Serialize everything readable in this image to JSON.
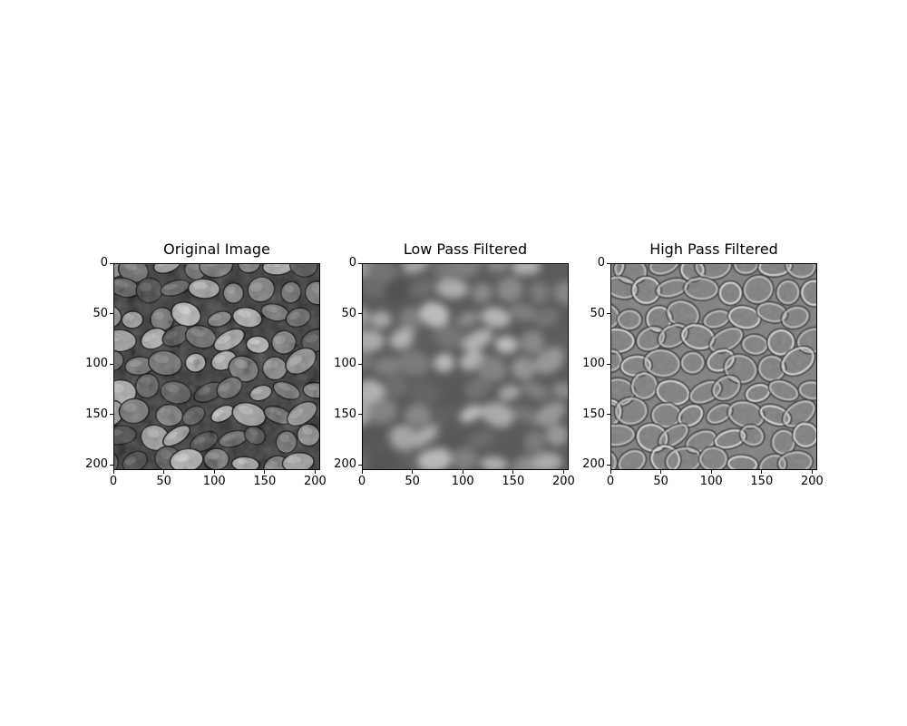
{
  "figure": {
    "panels": [
      {
        "title": "Original Image",
        "kind": "original"
      },
      {
        "title": "Low Pass Filtered",
        "kind": "lowpass"
      },
      {
        "title": "High Pass Filtered",
        "kind": "highpass"
      }
    ],
    "axis": {
      "xticks": [
        "0",
        "50",
        "100",
        "150",
        "200"
      ],
      "yticks": [
        "0",
        "50",
        "100",
        "150",
        "200"
      ],
      "tick_values": [
        0,
        50,
        100,
        150,
        200
      ],
      "extent": 205
    },
    "colormap": "gray"
  }
}
